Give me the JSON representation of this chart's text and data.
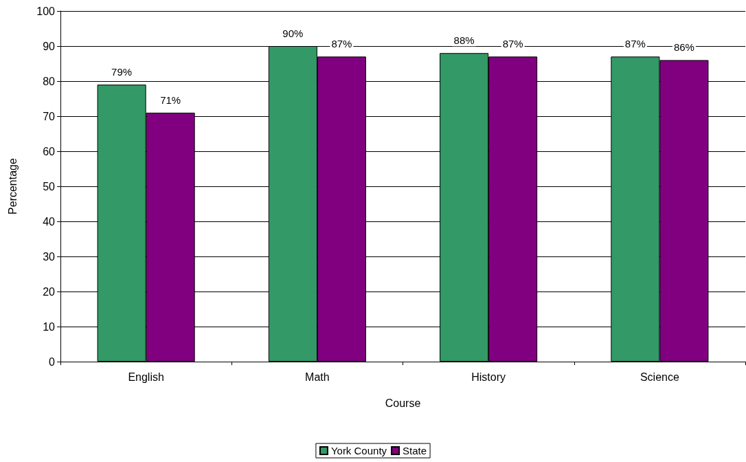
{
  "chart_data": {
    "type": "bar",
    "xlabel": "Course",
    "ylabel": "Percentage",
    "categories": [
      "English",
      "Math",
      "History",
      "Science"
    ],
    "series": [
      {
        "name": "York County",
        "color": "#339966",
        "values": [
          79,
          90,
          88,
          87
        ],
        "value_labels": [
          "79%",
          "90%",
          "88%",
          "87%"
        ]
      },
      {
        "name": "State",
        "color": "#800080",
        "values": [
          71,
          87,
          87,
          86
        ],
        "value_labels": [
          "71%",
          "87%",
          "87%",
          "86%"
        ]
      }
    ],
    "ylim": [
      0,
      100
    ],
    "yticks": [
      0,
      10,
      20,
      30,
      40,
      50,
      60,
      70,
      80,
      90,
      100
    ],
    "grid": "y",
    "legend": "bottom"
  }
}
